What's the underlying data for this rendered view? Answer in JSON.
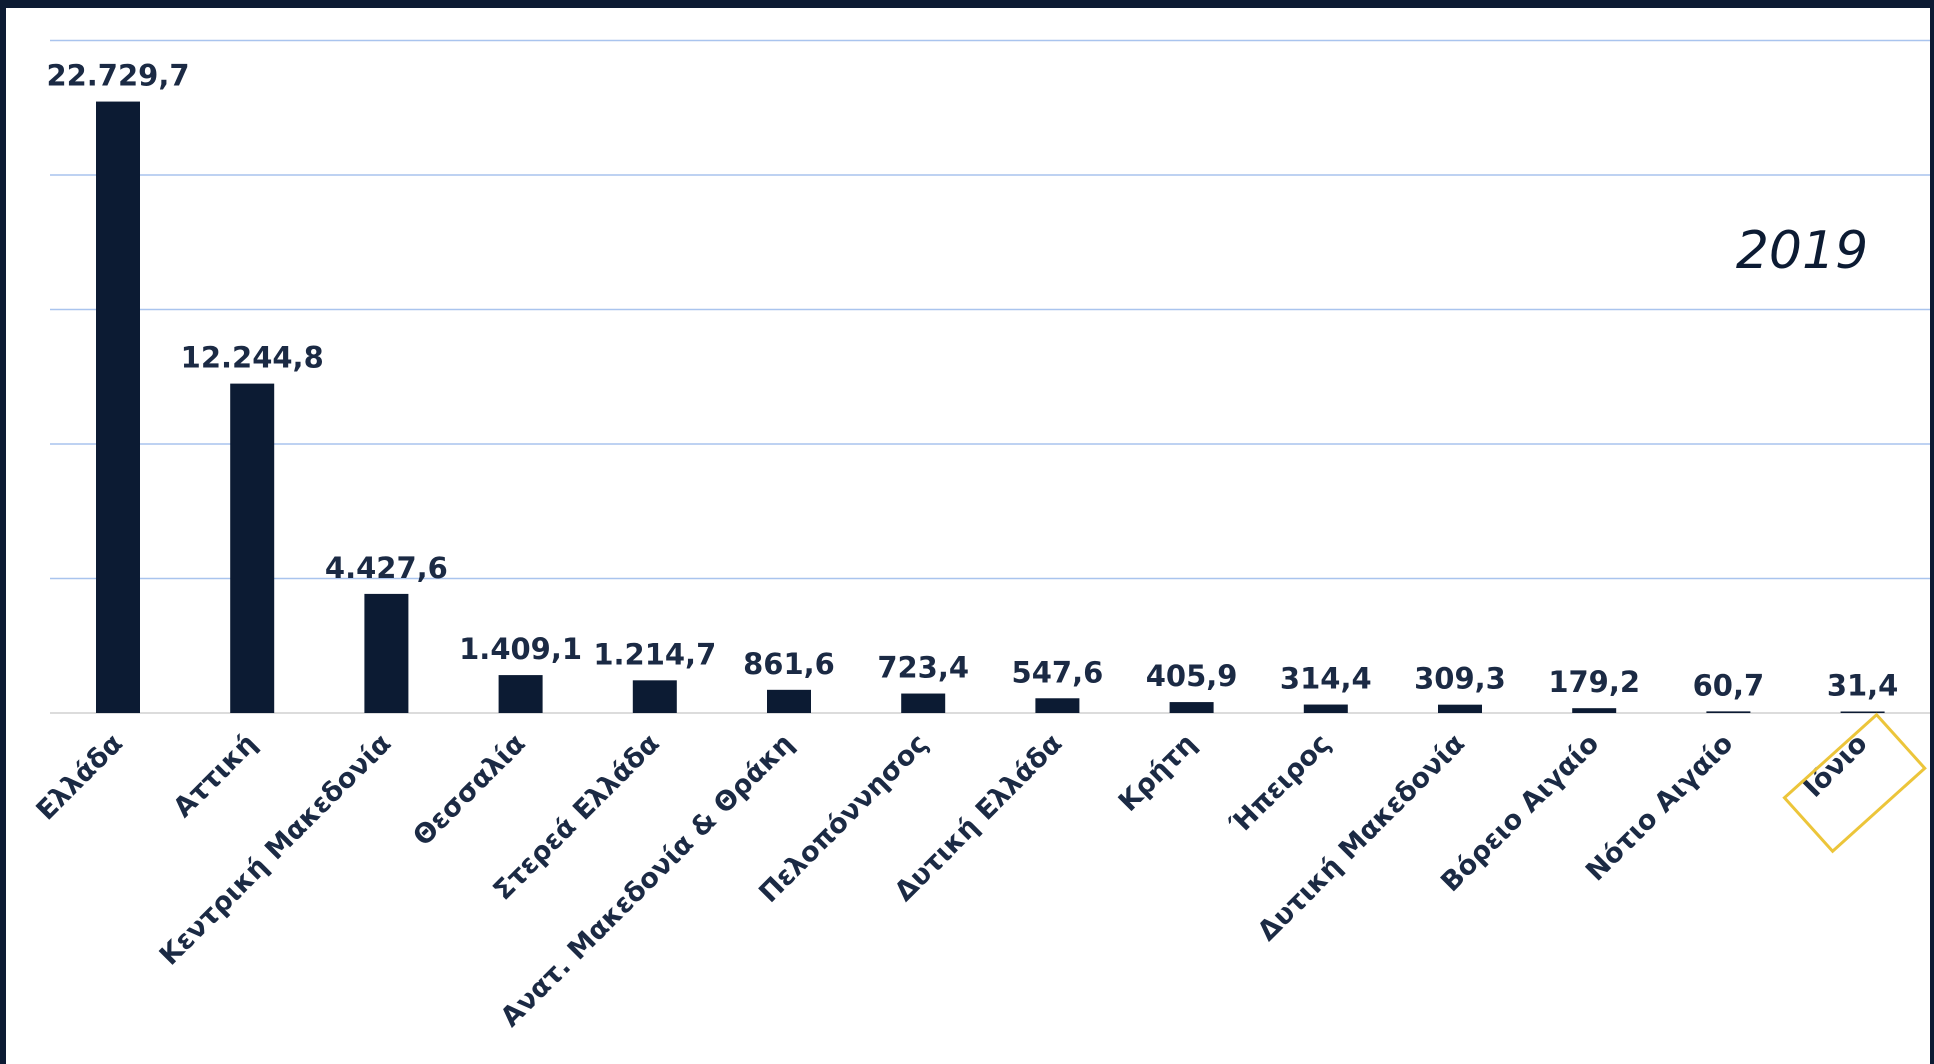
{
  "chart_data": {
    "type": "bar",
    "title": "",
    "annotation": "2019",
    "xlabel": "",
    "ylabel": "",
    "ylim": [
      0,
      25000
    ],
    "grid": true,
    "legend": "none",
    "categories": [
      "Ελλάδα",
      "Αττική",
      "Κεντρική Μακεδονία",
      "Θεσσαλία",
      "Στερεά Ελλάδα",
      "Ανατ. Μακεδονία & Θράκη",
      "Πελοπόννησος",
      "Δυτική Ελλάδα",
      "Κρήτη",
      "Ήπειρος",
      "Δυτική Μακεδονία",
      "Βόρειο Αιγαίο",
      "Νότιο Αιγαίο",
      "Ιόνιο"
    ],
    "values": [
      22729.7,
      12244.8,
      4427.6,
      1409.1,
      1214.7,
      861.6,
      723.4,
      547.6,
      405.9,
      314.4,
      309.3,
      179.2,
      60.7,
      31.4
    ],
    "value_labels": [
      "22.729,7",
      "12.244,8",
      "4.427,6",
      "1.409,1",
      "1.214,7",
      "861,6",
      "723,4",
      "547,6",
      "405,9",
      "314,4",
      "309,3",
      "179,2",
      "60,7",
      "31,4"
    ],
    "highlighted_category": "Ιόνιο"
  },
  "colors": {
    "bar": "#0c1b33",
    "frame": "#0c1b33",
    "gridline": "#a9c4ee",
    "axis": "#d0d0d0",
    "highlight": "#ecc53a",
    "text": "#1b2a44"
  }
}
